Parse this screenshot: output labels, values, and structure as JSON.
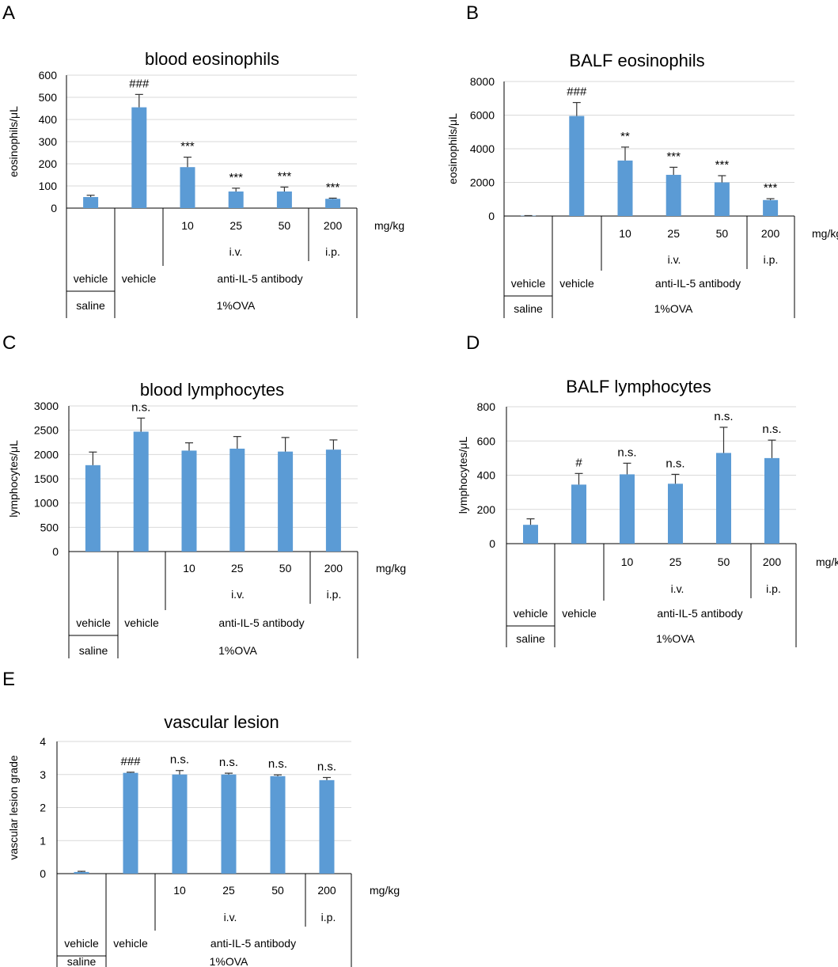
{
  "figure": {
    "bar_color": "#5b9bd5",
    "table_rows": {
      "dose_unit": "mg/kg",
      "route_iv": "i.v.",
      "route_ip": "i.p.",
      "vehicle": "vehicle",
      "antibody": "anti-IL-5 antibody",
      "saline": "saline",
      "ova": "1%OVA"
    }
  },
  "chart_data": [
    {
      "panel": "A",
      "type": "bar",
      "title": "blood eosinophils",
      "ylabel": "eosinophils/μL",
      "ylim": [
        0,
        600
      ],
      "yticks": [
        0,
        100,
        200,
        300,
        400,
        500,
        600
      ],
      "grid": true,
      "doses": [
        "",
        "",
        "10",
        "25",
        "50",
        "200"
      ],
      "values": [
        50,
        455,
        185,
        75,
        75,
        42
      ],
      "errors": [
        8,
        58,
        45,
        15,
        20,
        3
      ],
      "significance": [
        "",
        "###",
        "***",
        "***",
        "***",
        "***"
      ]
    },
    {
      "panel": "B",
      "type": "bar",
      "title": "BALF eosinophils",
      "ylabel": "eosinophils/μL",
      "ylim": [
        0,
        8000
      ],
      "yticks": [
        0,
        2000,
        4000,
        6000,
        8000
      ],
      "grid": true,
      "doses": [
        "",
        "",
        "10",
        "25",
        "50",
        "200"
      ],
      "values": [
        20,
        5950,
        3300,
        2450,
        2000,
        950
      ],
      "errors": [
        5,
        800,
        800,
        450,
        400,
        80
      ],
      "significance": [
        "",
        "###",
        "**",
        "***",
        "***",
        "***"
      ]
    },
    {
      "panel": "C",
      "type": "bar",
      "title": "blood lymphocytes",
      "ylabel": "lymphocytes/μL",
      "ylim": [
        0,
        3000
      ],
      "yticks": [
        0,
        500,
        1000,
        1500,
        2000,
        2500,
        3000
      ],
      "grid": true,
      "doses": [
        "",
        "",
        "10",
        "25",
        "50",
        "200"
      ],
      "values": [
        1780,
        2470,
        2080,
        2120,
        2060,
        2100
      ],
      "errors": [
        270,
        280,
        160,
        250,
        290,
        200
      ],
      "significance": [
        "",
        "n.s.",
        "",
        "",
        "",
        ""
      ]
    },
    {
      "panel": "D",
      "type": "bar",
      "title": "BALF lymphocytes",
      "ylabel": "lymphocytes/μL",
      "ylim": [
        0,
        800
      ],
      "yticks": [
        0,
        200,
        400,
        600,
        800
      ],
      "grid": true,
      "doses": [
        "",
        "",
        "10",
        "25",
        "50",
        "200"
      ],
      "values": [
        110,
        345,
        405,
        350,
        530,
        500
      ],
      "errors": [
        35,
        65,
        65,
        55,
        150,
        105
      ],
      "significance": [
        "",
        "#",
        "n.s.",
        "n.s.",
        "n.s.",
        "n.s."
      ]
    },
    {
      "panel": "E",
      "type": "bar",
      "title": "vascular lesion",
      "ylabel": "vascular lesion grade",
      "ylim": [
        0,
        4
      ],
      "yticks": [
        0,
        1,
        2,
        3,
        4
      ],
      "grid": true,
      "doses": [
        "",
        "",
        "10",
        "25",
        "50",
        "200"
      ],
      "values": [
        0.05,
        3.05,
        3.0,
        3.0,
        2.95,
        2.83
      ],
      "errors": [
        0.02,
        0.02,
        0.12,
        0.04,
        0.04,
        0.08
      ],
      "significance": [
        "",
        "###",
        "n.s.",
        "n.s.",
        "n.s.",
        "n.s."
      ]
    }
  ]
}
